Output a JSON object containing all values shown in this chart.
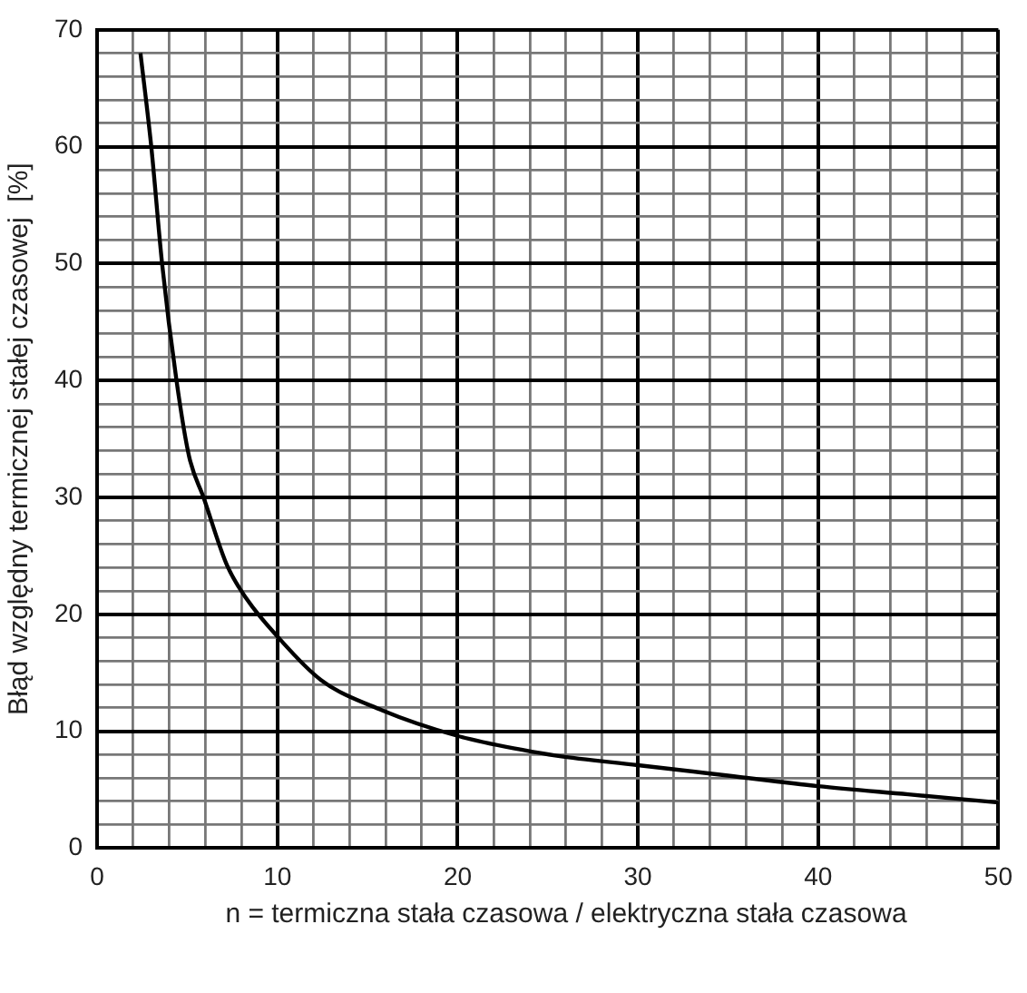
{
  "chart_data": {
    "type": "line",
    "xlabel": "n = termiczna stała czasowa / elektryczna stała czasowa",
    "ylabel": "Błąd względny termicznej stałej czasowej  [%]",
    "xlim": [
      0,
      50
    ],
    "ylim": [
      0,
      70
    ],
    "xticks": [
      0,
      {
        "value": 2,
        "label": null
      },
      {
        "value": 4,
        "label": null
      },
      {
        "value": 6,
        "label": null
      },
      {
        "value": 8,
        "label": null
      },
      10,
      {
        "value": 12,
        "label": null
      },
      {
        "value": 14,
        "label": null
      },
      {
        "value": 16,
        "label": null
      },
      {
        "value": 18,
        "label": null
      },
      20,
      {
        "value": 22,
        "label": null
      },
      {
        "value": 24,
        "label": null
      },
      {
        "value": 26,
        "label": null
      },
      {
        "value": 28,
        "label": null
      },
      30,
      {
        "value": 32,
        "label": null
      },
      {
        "value": 34,
        "label": null
      },
      {
        "value": 36,
        "label": null
      },
      {
        "value": 38,
        "label": null
      },
      40,
      {
        "value": 42,
        "label": null
      },
      {
        "value": 44,
        "label": null
      },
      {
        "value": 46,
        "label": null
      },
      {
        "value": 48,
        "label": null
      },
      50
    ],
    "yticks": [
      0,
      {
        "value": 2,
        "label": null
      },
      {
        "value": 4,
        "label": null
      },
      {
        "value": 6,
        "label": null
      },
      {
        "value": 8,
        "label": null
      },
      10,
      {
        "value": 12,
        "label": null
      },
      {
        "value": 14,
        "label": null
      },
      {
        "value": 16,
        "label": null
      },
      {
        "value": 18,
        "label": null
      },
      20,
      {
        "value": 22,
        "label": null
      },
      {
        "value": 24,
        "label": null
      },
      {
        "value": 26,
        "label": null
      },
      {
        "value": 28,
        "label": null
      },
      30,
      {
        "value": 32,
        "label": null
      },
      {
        "value": 34,
        "label": null
      },
      {
        "value": 36,
        "label": null
      },
      {
        "value": 38,
        "label": null
      },
      40,
      {
        "value": 42,
        "label": null
      },
      {
        "value": 44,
        "label": null
      },
      {
        "value": 46,
        "label": null
      },
      {
        "value": 48,
        "label": null
      },
      50,
      {
        "value": 52,
        "label": null
      },
      {
        "value": 54,
        "label": null
      },
      {
        "value": 56,
        "label": null
      },
      {
        "value": 58,
        "label": null
      },
      60,
      {
        "value": 62,
        "label": null
      },
      {
        "value": 64,
        "label": null
      },
      {
        "value": 66,
        "label": null
      },
      {
        "value": 68,
        "label": null
      },
      70
    ],
    "grid": true,
    "marker": "none",
    "line_style": "solid",
    "series": [
      {
        "color": "#000000",
        "x": [
          2.4,
          3,
          3.6,
          4.4,
          5.1,
          5.9,
          7.2,
          8.3,
          10,
          12.4,
          15.8,
          20,
          23.6,
          25.5,
          30,
          35,
          40,
          45,
          50
        ],
        "values": [
          68,
          60,
          50,
          40,
          33.5,
          30,
          24.2,
          21.3,
          18.1,
          14.4,
          11.8,
          9.6,
          8.4,
          7.9,
          7.1,
          6.2,
          5.3,
          4.6,
          3.9
        ]
      }
    ]
  }
}
